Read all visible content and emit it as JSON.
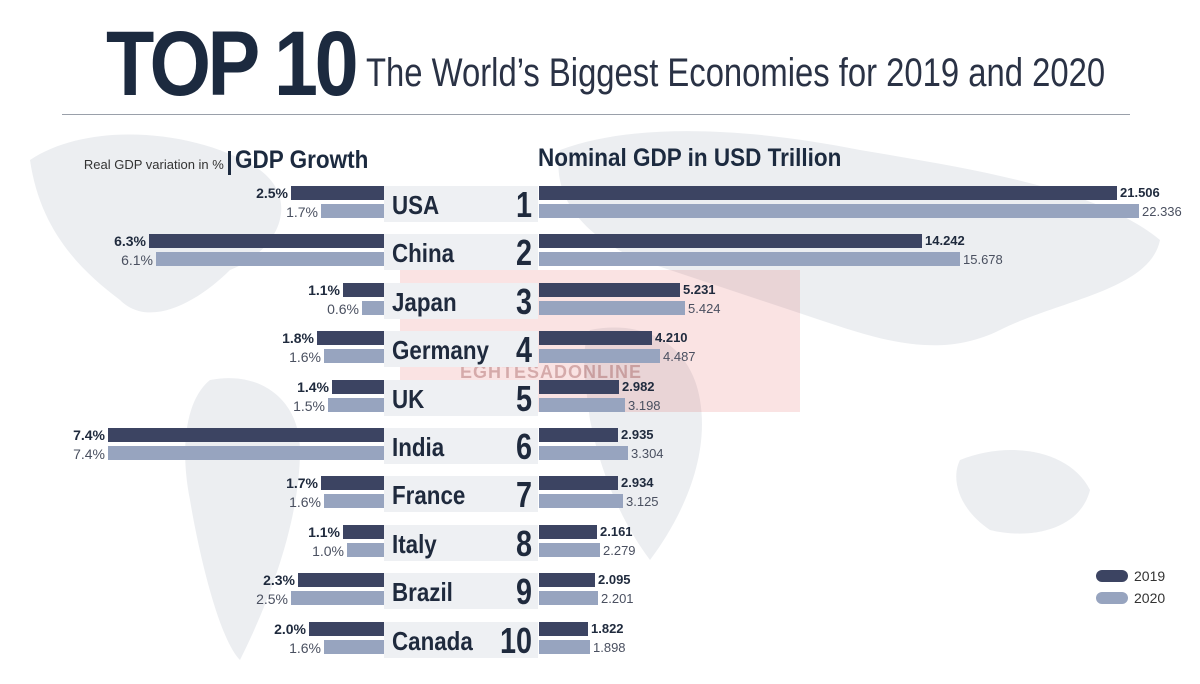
{
  "header": {
    "title": "TOP 10",
    "subtitle": "The World’s Biggest Economies for 2019 and 2020"
  },
  "left_panel": {
    "small_label": "Real GDP variation in %",
    "title": "GDP Growth"
  },
  "right_panel": {
    "title": "Nominal GDP in USD Trillion"
  },
  "legend": [
    "2019",
    "2020"
  ],
  "colors": {
    "y2019": "#3c4462",
    "y2020": "#97a4bf"
  },
  "watermark": {
    "text": "EGHTESADONLINE"
  },
  "chart_data": [
    {
      "type": "bar",
      "title": "GDP Growth",
      "categories": [
        "USA",
        "China",
        "Japan",
        "Germany",
        "UK",
        "India",
        "France",
        "Italy",
        "Brazil",
        "Canada"
      ],
      "series": [
        {
          "name": "2019",
          "values": [
            2.5,
            6.3,
            1.1,
            1.8,
            1.4,
            7.4,
            1.7,
            1.1,
            2.3,
            2.0
          ],
          "labels": [
            "2.5%",
            "6.3%",
            "1.1%",
            "1.8%",
            "1.4%",
            "7.4%",
            "1.7%",
            "1.1%",
            "2.3%",
            "2.0%"
          ]
        },
        {
          "name": "2020",
          "values": [
            1.7,
            6.1,
            0.6,
            1.6,
            1.5,
            7.4,
            1.6,
            1.0,
            2.5,
            1.6
          ],
          "labels": [
            "1.7%",
            "6.1%",
            "0.6%",
            "1.6%",
            "1.5%",
            "7.4%",
            "1.6%",
            "1.0%",
            "2.5%",
            "1.6%"
          ]
        }
      ],
      "ylim": [
        0,
        7.4
      ]
    },
    {
      "type": "bar",
      "title": "Nominal GDP in USD Trillion",
      "categories": [
        "USA",
        "China",
        "Japan",
        "Germany",
        "UK",
        "India",
        "France",
        "Italy",
        "Brazil",
        "Canada"
      ],
      "series": [
        {
          "name": "2019",
          "values": [
            21.506,
            14.242,
            5.231,
            4.21,
            2.982,
            2.935,
            2.934,
            2.161,
            2.095,
            1.822
          ],
          "labels": [
            "21.506",
            "14.242",
            "5.231",
            "4.210",
            "2.982",
            "2.935",
            "2.934",
            "2.161",
            "2.095",
            "1.822"
          ]
        },
        {
          "name": "2020",
          "values": [
            22.336,
            15.678,
            5.424,
            4.487,
            3.198,
            3.304,
            3.125,
            2.279,
            2.201,
            1.898
          ],
          "labels": [
            "22.336",
            "15.678",
            "5.424",
            "4.487",
            "3.198",
            "3.304",
            "3.125",
            "2.279",
            "2.201",
            "1.898"
          ]
        }
      ],
      "ylim": [
        0,
        22.336
      ]
    }
  ],
  "ranking": [
    {
      "rank": "1",
      "country": "USA"
    },
    {
      "rank": "2",
      "country": "China"
    },
    {
      "rank": "3",
      "country": "Japan"
    },
    {
      "rank": "4",
      "country": "Germany"
    },
    {
      "rank": "5",
      "country": "UK"
    },
    {
      "rank": "6",
      "country": "India"
    },
    {
      "rank": "7",
      "country": "France"
    },
    {
      "rank": "8",
      "country": "Italy"
    },
    {
      "rank": "9",
      "country": "Brazil"
    },
    {
      "rank": "10",
      "country": "Canada"
    }
  ]
}
